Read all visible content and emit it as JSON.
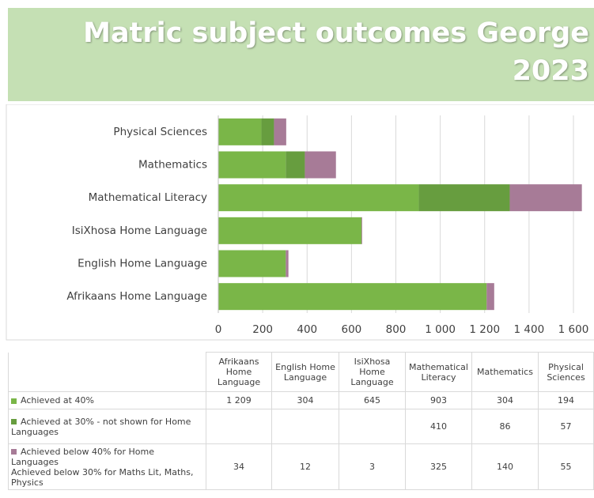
{
  "chart_data": {
    "type": "stacked_barh",
    "title": "Matric subject outcomes George 2023",
    "categories": [
      "Afrikaans Home Language",
      "English Home Language",
      "IsiXhosa Home Language",
      "Mathematical Literacy",
      "Mathematics",
      "Physical Sciences"
    ],
    "series": [
      {
        "name": "Achieved at 40%",
        "color": "#7ab648",
        "values": [
          1209,
          304,
          645,
          903,
          304,
          194
        ],
        "value_labels": [
          "1 209",
          "304",
          "645",
          "903",
          "304",
          "194"
        ]
      },
      {
        "name": "Achieved at 30% - not shown for Home Languages",
        "color": "#679d3f",
        "values": [
          null,
          null,
          null,
          410,
          86,
          57
        ]
      },
      {
        "name": "Achieved below 40% for Home Languages\nAchieved below 30% for Maths Lit, Maths, Physics",
        "color": "#a77b97",
        "values": [
          34,
          12,
          3,
          325,
          140,
          55
        ]
      }
    ],
    "xlim": [
      0,
      1600
    ],
    "xticks": [
      0,
      200,
      400,
      600,
      800,
      {
        "value": 1000,
        "label": "1 000"
      },
      {
        "value": 1200,
        "label": "1 200"
      },
      {
        "value": 1400,
        "label": "1 400"
      },
      {
        "value": 1600,
        "label": "1 600"
      }
    ],
    "grid": true
  }
}
